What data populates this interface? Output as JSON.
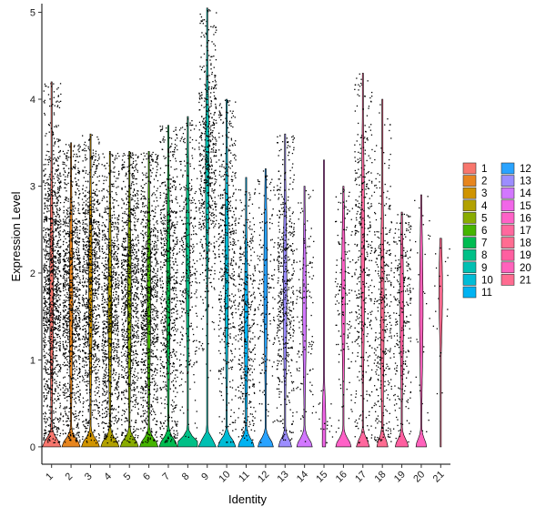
{
  "chart_data": {
    "type": "violin",
    "xlabel": "Identity",
    "ylabel": "Expression Level",
    "ylim": [
      -0.2,
      5.1
    ],
    "yticks": [
      0,
      1,
      2,
      3,
      4,
      5
    ],
    "grid": false,
    "legend_position": "right",
    "legend_columns": 2,
    "categories": [
      "1",
      "2",
      "3",
      "4",
      "5",
      "6",
      "7",
      "8",
      "9",
      "10",
      "11",
      "12",
      "13",
      "14",
      "15",
      "16",
      "17",
      "18",
      "19",
      "20",
      "21"
    ],
    "colors": [
      "#F8766D",
      "#E7851E",
      "#D09400",
      "#B2A100",
      "#89AC00",
      "#45B500",
      "#00BC51",
      "#00C087",
      "#00C0B2",
      "#00BCD6",
      "#00B3F2",
      "#29A3FF",
      "#9C8DFF",
      "#D277FF",
      "#F166E8",
      "#FF61C7",
      "#FF689E",
      "#FF6C91",
      "#FF5FA0",
      "#FF62BC",
      "#FF6C91"
    ],
    "series": [
      {
        "category": "1",
        "zero_peak": 0.35,
        "max": 4.2,
        "n_points": 1200,
        "median": 1.8,
        "q_low": 0.5,
        "q_high": 3.7
      },
      {
        "category": "2",
        "zero_peak": 0.35,
        "max": 3.5,
        "n_points": 1000,
        "median": 1.7,
        "q_low": 0.4,
        "q_high": 3.3
      },
      {
        "category": "3",
        "zero_peak": 0.35,
        "max": 3.6,
        "n_points": 1000,
        "median": 1.8,
        "q_low": 0.4,
        "q_high": 3.2
      },
      {
        "category": "4",
        "zero_peak": 0.35,
        "max": 3.4,
        "n_points": 900,
        "median": 1.6,
        "q_low": 0.3,
        "q_high": 3.0
      },
      {
        "category": "5",
        "zero_peak": 0.35,
        "max": 3.4,
        "n_points": 900,
        "median": 1.7,
        "q_low": 0.3,
        "q_high": 3.1
      },
      {
        "category": "6",
        "zero_peak": 0.35,
        "max": 3.4,
        "n_points": 900,
        "median": 1.7,
        "q_low": 0.3,
        "q_high": 3.2
      },
      {
        "category": "7",
        "zero_peak": 0.35,
        "max": 3.7,
        "n_points": 700,
        "median": 1.8,
        "q_low": 0.2,
        "q_high": 3.4
      },
      {
        "category": "8",
        "zero_peak": 0.5,
        "max": 3.8,
        "n_points": 350,
        "median": 2.2,
        "q_low": 0.5,
        "q_high": 3.4
      },
      {
        "category": "9",
        "zero_peak": 0.35,
        "max": 5.05,
        "n_points": 600,
        "median": 3.2,
        "q_low": 1.3,
        "q_high": 4.1
      },
      {
        "category": "10",
        "zero_peak": 0.35,
        "max": 4.0,
        "n_points": 500,
        "median": 2.1,
        "q_low": 0.5,
        "q_high": 3.7
      },
      {
        "category": "11",
        "zero_peak": 0.3,
        "max": 3.1,
        "n_points": 400,
        "median": 1.4,
        "q_low": 0.2,
        "q_high": 2.8
      },
      {
        "category": "12",
        "zero_peak": 0.3,
        "max": 3.2,
        "n_points": 180,
        "median": 1.9,
        "q_low": 0.3,
        "q_high": 3.0
      },
      {
        "category": "13",
        "zero_peak": 0.25,
        "max": 3.6,
        "n_points": 500,
        "median": 1.8,
        "q_low": 0.3,
        "q_high": 3.2
      },
      {
        "category": "14",
        "zero_peak": 0.3,
        "max": 3.0,
        "n_points": 140,
        "median": 1.6,
        "q_low": 0.2,
        "q_high": 2.7
      },
      {
        "category": "15",
        "zero_peak": 0.02,
        "max": 3.3,
        "n_points": 20,
        "median": 0.3,
        "q_low": 0.0,
        "q_high": 1.0
      },
      {
        "category": "16",
        "zero_peak": 0.3,
        "max": 3.0,
        "n_points": 150,
        "median": 1.8,
        "q_low": 0.3,
        "q_high": 2.8
      },
      {
        "category": "17",
        "zero_peak": 0.25,
        "max": 4.3,
        "n_points": 400,
        "median": 2.2,
        "q_low": 0.4,
        "q_high": 3.8
      },
      {
        "category": "18",
        "zero_peak": 0.2,
        "max": 4.0,
        "n_points": 350,
        "median": 1.6,
        "q_low": 0.3,
        "q_high": 3.5
      },
      {
        "category": "19",
        "zero_peak": 0.25,
        "max": 2.7,
        "n_points": 260,
        "median": 1.6,
        "q_low": 0.3,
        "q_high": 2.6
      },
      {
        "category": "20",
        "zero_peak": 0.2,
        "max": 2.9,
        "n_points": 30,
        "median": 1.6,
        "q_low": 0.3,
        "q_high": 2.8
      },
      {
        "category": "21",
        "zero_peak": 0.0,
        "max": 2.4,
        "n_points": 20,
        "median": 1.8,
        "q_low": 0.8,
        "q_high": 2.4
      }
    ]
  }
}
